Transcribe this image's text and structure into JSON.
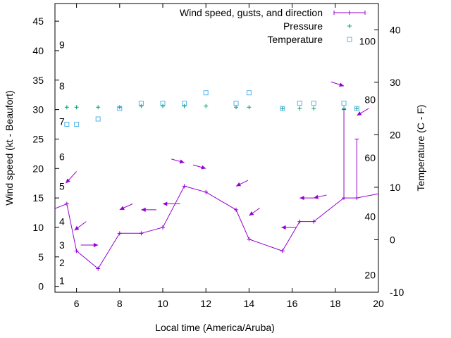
{
  "chart_data": {
    "type": "line",
    "xlabel": "Local time (America/Aruba)",
    "ylabel_left": "Wind speed (kt - Beaufort)",
    "ylabel_right": "Temperature (C - F)",
    "xlim": [
      5,
      20
    ],
    "ylim_left": [
      -1,
      48
    ],
    "ylim_right_celsius": [
      -10,
      45
    ],
    "x_ticks": [
      6,
      8,
      10,
      12,
      14,
      16,
      18,
      20
    ],
    "y_ticks_left": [
      0,
      5,
      10,
      15,
      20,
      25,
      30,
      35,
      40,
      45
    ],
    "y_ticks_right": [
      -10,
      0,
      10,
      20,
      30,
      40
    ],
    "beaufort_labels": [
      {
        "label": "1",
        "kt": 1
      },
      {
        "label": "2",
        "kt": 4
      },
      {
        "label": "3",
        "kt": 7
      },
      {
        "label": "4",
        "kt": 11
      },
      {
        "label": "5",
        "kt": 17
      },
      {
        "label": "6",
        "kt": 22
      },
      {
        "label": "7",
        "kt": 28
      },
      {
        "label": "8",
        "kt": 34
      },
      {
        "label": "9",
        "kt": 41
      }
    ],
    "fahrenheit_labels": [
      {
        "label": "20",
        "celsius": -6.7
      },
      {
        "label": "40",
        "celsius": 4.4
      },
      {
        "label": "60",
        "celsius": 15.6
      },
      {
        "label": "80",
        "celsius": 26.7
      },
      {
        "label": "100",
        "celsius": 37.8
      }
    ],
    "legend": [
      {
        "label": "Wind speed, gusts, and direction",
        "color": "#9400d3",
        "marker": "line-plus"
      },
      {
        "label": "Pressure",
        "color": "#009e73",
        "marker": "plus"
      },
      {
        "label": "Temperature",
        "color": "#56b4e9",
        "marker": "square"
      }
    ],
    "legend_position": "top-right",
    "series": [
      {
        "name": "Wind speed, gusts, and direction",
        "color": "#9400d3",
        "points": [
          {
            "x": 5.0,
            "y": 13.2
          },
          {
            "x": 5.55,
            "y": 14.0
          },
          {
            "x": 6.0,
            "y": 6.0
          },
          {
            "x": 7.0,
            "y": 3.0
          },
          {
            "x": 8.0,
            "y": 9.0
          },
          {
            "x": 9.0,
            "y": 9.0
          },
          {
            "x": 10.0,
            "y": 10.0
          },
          {
            "x": 11.0,
            "y": 17.0
          },
          {
            "x": 12.0,
            "y": 16.0
          },
          {
            "x": 13.4,
            "y": 13.0
          },
          {
            "x": 14.0,
            "y": 8.0
          },
          {
            "x": 15.55,
            "y": 6.0
          },
          {
            "x": 16.35,
            "y": 11.0
          },
          {
            "x": 17.0,
            "y": 11.0
          },
          {
            "x": 18.4,
            "y": 15.0
          },
          {
            "x": 19.0,
            "y": 15.0
          },
          {
            "x": 20.0,
            "y": 15.7
          }
        ],
        "gusts": [
          {
            "x": 18.4,
            "y": 30.0
          },
          {
            "x": 19.0,
            "y": 25.0
          }
        ],
        "direction_arrows": [
          {
            "x": 5.5,
            "y": 17.5,
            "dx": 0.5,
            "dy": 2.0
          },
          {
            "x": 5.9,
            "y": 9.5,
            "dx": 0.55,
            "dy": 1.5
          },
          {
            "x": 7.0,
            "y": 7.0,
            "dx": -0.8,
            "dy": 0.0
          },
          {
            "x": 8.0,
            "y": 13.0,
            "dx": 0.6,
            "dy": 1.0
          },
          {
            "x": 9.0,
            "y": 13.0,
            "dx": 0.7,
            "dy": 0.0
          },
          {
            "x": 10.0,
            "y": 14.0,
            "dx": 0.8,
            "dy": 0.0
          },
          {
            "x": 11.0,
            "y": 21.0,
            "dx": -0.6,
            "dy": 0.6
          },
          {
            "x": 12.0,
            "y": 20.0,
            "dx": -0.6,
            "dy": 0.6
          },
          {
            "x": 13.4,
            "y": 17.0,
            "dx": 0.55,
            "dy": 1.0
          },
          {
            "x": 14.0,
            "y": 12.0,
            "dx": 0.5,
            "dy": 1.3
          },
          {
            "x": 15.5,
            "y": 10.0,
            "dx": 0.7,
            "dy": 0.0
          },
          {
            "x": 16.35,
            "y": 15.0,
            "dx": 0.8,
            "dy": 0.0
          },
          {
            "x": 17.0,
            "y": 15.0,
            "dx": 0.6,
            "dy": 0.5
          },
          {
            "x": 18.4,
            "y": 34.0,
            "dx": -0.6,
            "dy": 0.7
          },
          {
            "x": 19.0,
            "y": 29.0,
            "dx": 0.55,
            "dy": 1.2
          }
        ]
      },
      {
        "name": "Pressure",
        "color": "#009e73",
        "points": [
          {
            "x": 5.55,
            "y": 30.4
          },
          {
            "x": 6.0,
            "y": 30.4
          },
          {
            "x": 7.0,
            "y": 30.4
          },
          {
            "x": 8.0,
            "y": 30.4
          },
          {
            "x": 9.0,
            "y": 30.6
          },
          {
            "x": 10.0,
            "y": 30.6
          },
          {
            "x": 11.0,
            "y": 30.6
          },
          {
            "x": 12.0,
            "y": 30.6
          },
          {
            "x": 13.4,
            "y": 30.4
          },
          {
            "x": 14.0,
            "y": 30.4
          },
          {
            "x": 15.55,
            "y": 30.2
          },
          {
            "x": 16.35,
            "y": 30.2
          },
          {
            "x": 17.0,
            "y": 30.2
          },
          {
            "x": 18.4,
            "y": 30.2
          },
          {
            "x": 19.0,
            "y": 30.2
          }
        ]
      },
      {
        "name": "Temperature",
        "color": "#56b4e9",
        "unit": "C",
        "points": [
          {
            "x": 5.55,
            "y": 22.0
          },
          {
            "x": 6.0,
            "y": 22.0
          },
          {
            "x": 7.0,
            "y": 23.0
          },
          {
            "x": 8.0,
            "y": 25.0
          },
          {
            "x": 9.0,
            "y": 26.0
          },
          {
            "x": 10.0,
            "y": 26.0
          },
          {
            "x": 11.0,
            "y": 26.0
          },
          {
            "x": 12.0,
            "y": 28.0
          },
          {
            "x": 13.4,
            "y": 26.0
          },
          {
            "x": 14.0,
            "y": 28.0
          },
          {
            "x": 15.55,
            "y": 25.0
          },
          {
            "x": 16.35,
            "y": 26.0
          },
          {
            "x": 17.0,
            "y": 26.0
          },
          {
            "x": 18.4,
            "y": 26.0
          },
          {
            "x": 19.0,
            "y": 25.0
          }
        ]
      }
    ]
  }
}
